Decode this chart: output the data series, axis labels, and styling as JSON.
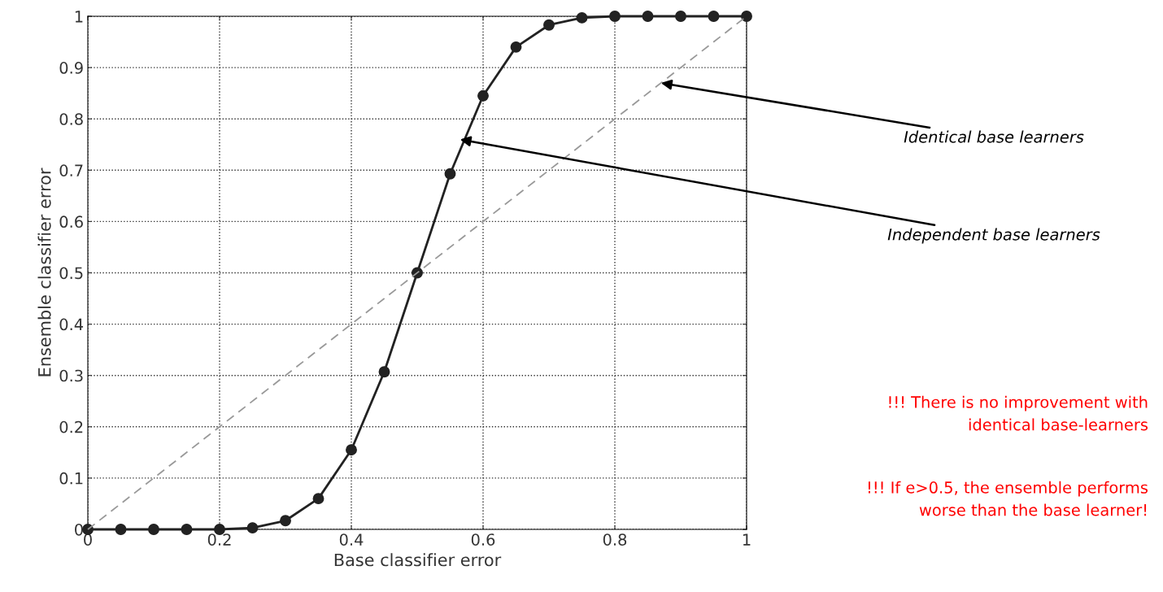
{
  "chart_data": {
    "type": "line",
    "xlabel": "Base classifier error",
    "ylabel": "Ensemble classifier error",
    "series": [
      {
        "color": "#222222",
        "marker": "circle",
        "line_style": "solid",
        "x": [
          0,
          0.05,
          0.1,
          0.15,
          0.2,
          0.25,
          0.3,
          0.35,
          0.4,
          0.45,
          0.5,
          0.55,
          0.6,
          0.65,
          0.7,
          0.75,
          0.8,
          0.85,
          0.9,
          0.95,
          1
        ],
        "values": [
          0,
          0,
          0,
          0,
          0,
          0.003,
          0.017,
          0.06,
          0.155,
          0.307,
          0.5,
          0.693,
          0.845,
          0.94,
          0.983,
          0.997,
          1,
          1,
          1,
          1,
          1
        ]
      },
      {
        "color": "#999999",
        "marker": "none",
        "line_style": "dashed",
        "x": [
          0,
          1
        ],
        "values": [
          0,
          1
        ]
      }
    ],
    "xlim": [
      0,
      1
    ],
    "ylim": [
      0,
      1
    ],
    "xticks": [
      0,
      0.2,
      0.4,
      0.6,
      0.8,
      1
    ],
    "yticks": [
      0,
      0.1,
      0.2,
      0.3,
      0.4,
      0.5,
      0.6,
      0.7,
      0.8,
      0.9,
      1
    ],
    "grid": true,
    "legend": false,
    "annotations": [
      {
        "text": "Identical base learners",
        "x": 0.87,
        "y": 0.87
      },
      {
        "text": "Independent base learners",
        "x": 0.565,
        "y": 0.76
      },
      "!!! There is no improvement with\nidentical base-learners",
      "!!! If e>0.5, the ensemble performs\nworse than the base learner!"
    ]
  }
}
